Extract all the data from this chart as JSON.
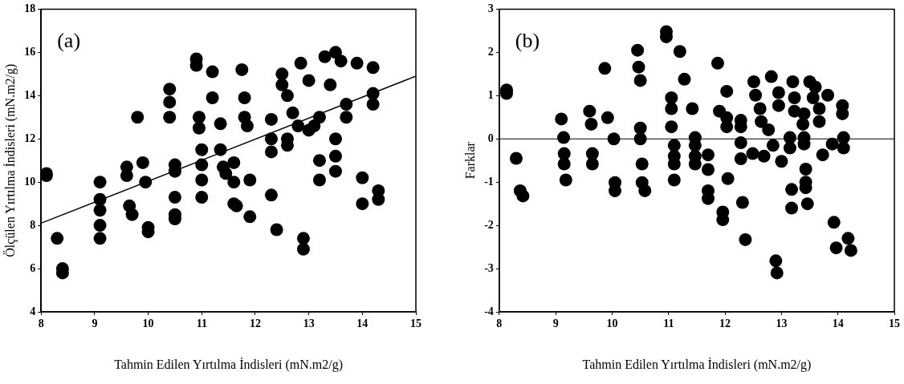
{
  "chart_data": [
    {
      "type": "scatter",
      "xlabel": "Tahmin Edilen Yırtılma İndisleri (mN.m2/g)",
      "ylabel": "Ölçülen Yırtılma İndisleri (mN.m2/g)",
      "annotations": [
        "(a)"
      ],
      "xlim": [
        8,
        15
      ],
      "xticks": [
        8,
        9,
        10,
        11,
        12,
        13,
        14,
        15
      ],
      "ylim": [
        4,
        18
      ],
      "yticks": [
        4,
        6,
        8,
        10,
        12,
        14,
        16,
        18
      ],
      "grid": false,
      "legend": false,
      "series": [
        {
          "type": "scatter",
          "marker": "circle",
          "color": "#000000",
          "x": [
            8.1,
            8.1,
            8.3,
            8.4,
            8.4,
            9.1,
            9.1,
            9.1,
            9.1,
            9.1,
            9.6,
            9.6,
            9.65,
            9.7,
            9.8,
            9.9,
            9.95,
            10.0,
            10.0,
            10.4,
            10.4,
            10.4,
            10.5,
            10.5,
            10.5,
            10.5,
            10.5,
            10.9,
            10.9,
            10.95,
            10.95,
            11.0,
            11.0,
            11.0,
            11.0,
            11.2,
            11.2,
            11.35,
            11.35,
            11.4,
            11.45,
            11.6,
            11.6,
            11.6,
            11.65,
            11.75,
            11.8,
            11.8,
            11.85,
            11.9,
            11.9,
            12.3,
            12.3,
            12.3,
            12.3,
            12.4,
            12.5,
            12.5,
            12.6,
            12.6,
            12.7,
            12.8,
            12.85,
            12.9,
            12.9,
            13.0,
            13.0,
            13.2,
            13.2,
            13.2,
            13.3,
            13.4,
            13.5,
            13.5,
            13.5,
            13.5,
            13.6,
            13.7,
            13.7,
            13.9,
            14.0,
            14.0,
            14.2,
            14.2,
            14.2,
            14.3,
            14.3,
            12.6,
            13.1
          ],
          "values": [
            10.4,
            10.3,
            7.4,
            6.0,
            5.8,
            10.0,
            9.2,
            8.7,
            8.0,
            7.4,
            10.7,
            10.3,
            8.9,
            8.5,
            13.0,
            10.9,
            10.0,
            7.9,
            7.7,
            14.3,
            13.7,
            13.0,
            10.8,
            10.5,
            9.3,
            8.5,
            8.3,
            15.7,
            15.4,
            13.0,
            12.5,
            11.5,
            10.8,
            10.1,
            9.3,
            15.1,
            13.9,
            12.7,
            11.5,
            10.7,
            10.4,
            10.9,
            10.0,
            9.0,
            8.9,
            15.2,
            13.0,
            13.9,
            12.6,
            10.1,
            8.4,
            12.9,
            12.0,
            11.4,
            9.4,
            7.8,
            15.0,
            14.5,
            11.7,
            14.0,
            13.2,
            12.6,
            15.5,
            7.4,
            6.9,
            14.7,
            12.4,
            13.0,
            11.0,
            10.1,
            15.8,
            14.5,
            16.0,
            12.0,
            11.2,
            10.5,
            15.6,
            13.6,
            13.0,
            15.5,
            10.2,
            9.0,
            14.1,
            13.6,
            15.3,
            9.6,
            9.2,
            12.0,
            12.6
          ]
        },
        {
          "type": "line",
          "marker": "none",
          "color": "#000000",
          "x": [
            8,
            15
          ],
          "values": [
            8.1,
            14.9
          ]
        }
      ]
    },
    {
      "type": "scatter",
      "xlabel": "Tahmin Edilen Yırtılma İndisleri (mN.m2/g)",
      "ylabel": "Farklar",
      "annotations": [
        "(b)"
      ],
      "xlim": [
        8,
        15
      ],
      "xticks": [
        8,
        9,
        10,
        11,
        12,
        13,
        14,
        15
      ],
      "ylim": [
        -4,
        3
      ],
      "yticks": [
        -4,
        -3,
        -2,
        -1,
        0,
        1,
        2,
        3
      ],
      "grid": false,
      "legend": false,
      "marker": "circle",
      "ref_lines": [
        {
          "axis": "y",
          "value": 0,
          "color": "#000000"
        }
      ],
      "series": [
        {
          "type": "scatter",
          "color": "#000000",
          "x": [
            8.13,
            8.13,
            8.3,
            8.37,
            8.42,
            9.1,
            9.14,
            9.15,
            9.15,
            9.18,
            9.6,
            9.63,
            9.65,
            9.65,
            9.87,
            9.92,
            10.03,
            10.05,
            10.05,
            10.45,
            10.47,
            10.5,
            10.5,
            10.5,
            10.53,
            10.53,
            10.58,
            10.96,
            10.96,
            11.05,
            11.05,
            11.05,
            11.1,
            11.1,
            11.1,
            11.1,
            11.2,
            11.28,
            11.42,
            11.47,
            11.47,
            11.47,
            11.47,
            11.7,
            11.7,
            11.7,
            11.7,
            11.87,
            11.9,
            12.03,
            12.03,
            12.03,
            12.05,
            11.96,
            11.96,
            12.28,
            12.28,
            12.28,
            12.28,
            12.49,
            12.69,
            12.31,
            12.36,
            12.51,
            12.54,
            12.62,
            12.64,
            12.77,
            12.85,
            12.82,
            12.95,
            12.95,
            12.9,
            12.92,
            13.0,
            13.15,
            13.15,
            13.2,
            13.23,
            13.23,
            13.18,
            13.18,
            13.38,
            13.4,
            13.4,
            13.4,
            13.5,
            13.6,
            13.56,
            13.43,
            13.43,
            13.43,
            13.46,
            13.67,
            13.67,
            13.73,
            13.82,
            13.9,
            14.08,
            14.08,
            14.1,
            14.1,
            13.93,
            13.97,
            14.18,
            14.23
          ],
          "values": [
            1.13,
            1.05,
            -0.45,
            -1.2,
            -1.32,
            0.46,
            0.03,
            -0.34,
            -0.58,
            -0.95,
            0.64,
            0.34,
            -0.34,
            -0.58,
            1.63,
            0.49,
            0.0,
            -1.01,
            -1.2,
            2.05,
            1.66,
            1.35,
            0.25,
            0.0,
            -0.58,
            -1.01,
            -1.2,
            2.48,
            2.36,
            0.95,
            0.7,
            0.28,
            -0.15,
            -0.4,
            -0.58,
            -0.95,
            2.02,
            1.38,
            0.7,
            0.03,
            -0.15,
            -0.4,
            -0.58,
            -0.37,
            -0.71,
            -1.2,
            -1.38,
            1.75,
            0.64,
            0.49,
            0.28,
            1.1,
            -0.92,
            -1.69,
            -1.87,
            0.43,
            0.28,
            -0.09,
            -0.46,
            -0.34,
            -0.4,
            -1.47,
            -2.33,
            1.32,
            1.01,
            0.7,
            0.4,
            0.21,
            -0.15,
            1.44,
            1.07,
            0.77,
            -2.82,
            -3.1,
            -0.52,
            -0.21,
            0.03,
            1.32,
            0.95,
            0.64,
            -1.17,
            -1.6,
            0.34,
            0.03,
            -0.12,
            0.58,
            1.32,
            1.2,
            0.95,
            -0.7,
            -1.0,
            -1.13,
            -1.5,
            0.7,
            0.4,
            -0.37,
            1.01,
            -0.12,
            0.77,
            0.58,
            0.03,
            -0.21,
            -1.93,
            -2.52,
            -2.3,
            -2.58
          ]
        }
      ]
    }
  ]
}
